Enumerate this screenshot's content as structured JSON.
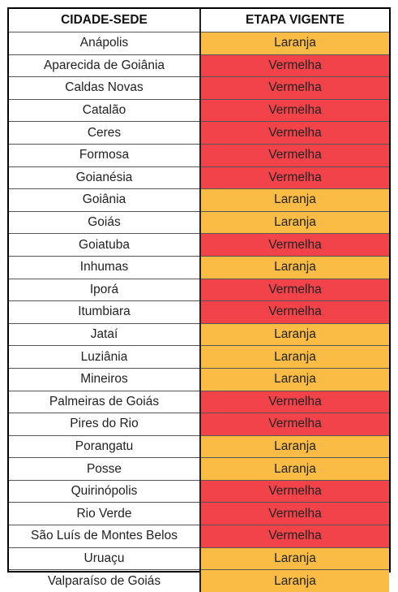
{
  "table": {
    "headers": {
      "city": "CIDADE-SEDE",
      "stage": "ETAPA VIGENTE"
    },
    "colors": {
      "Laranja": "#fbbc45",
      "Vermelha": "#f3434a"
    },
    "rows": [
      {
        "city": "Anápolis",
        "stage": "Laranja"
      },
      {
        "city": "Aparecida de Goiânia",
        "stage": "Vermelha"
      },
      {
        "city": "Caldas Novas",
        "stage": "Vermelha"
      },
      {
        "city": "Catalão",
        "stage": "Vermelha"
      },
      {
        "city": "Ceres",
        "stage": "Vermelha"
      },
      {
        "city": "Formosa",
        "stage": "Vermelha"
      },
      {
        "city": "Goianésia",
        "stage": "Vermelha"
      },
      {
        "city": "Goiânia",
        "stage": "Laranja"
      },
      {
        "city": "Goiás",
        "stage": "Laranja"
      },
      {
        "city": "Goiatuba",
        "stage": "Vermelha"
      },
      {
        "city": "Inhumas",
        "stage": "Laranja"
      },
      {
        "city": "Iporá",
        "stage": "Vermelha"
      },
      {
        "city": "Itumbiara",
        "stage": "Vermelha"
      },
      {
        "city": "Jataí",
        "stage": "Laranja"
      },
      {
        "city": "Luziânia",
        "stage": "Laranja"
      },
      {
        "city": "Mineiros",
        "stage": "Laranja"
      },
      {
        "city": "Palmeiras de Goiás",
        "stage": "Vermelha"
      },
      {
        "city": "Pires do Rio",
        "stage": "Vermelha"
      },
      {
        "city": "Porangatu",
        "stage": "Laranja"
      },
      {
        "city": "Posse",
        "stage": "Laranja"
      },
      {
        "city": "Quirinópolis",
        "stage": "Vermelha"
      },
      {
        "city": "Rio Verde",
        "stage": "Vermelha"
      },
      {
        "city": "São Luís de Montes Belos",
        "stage": "Vermelha"
      },
      {
        "city": "Uruaçu",
        "stage": "Laranja"
      },
      {
        "city": "Valparaíso de Goiás",
        "stage": "Laranja"
      }
    ]
  }
}
